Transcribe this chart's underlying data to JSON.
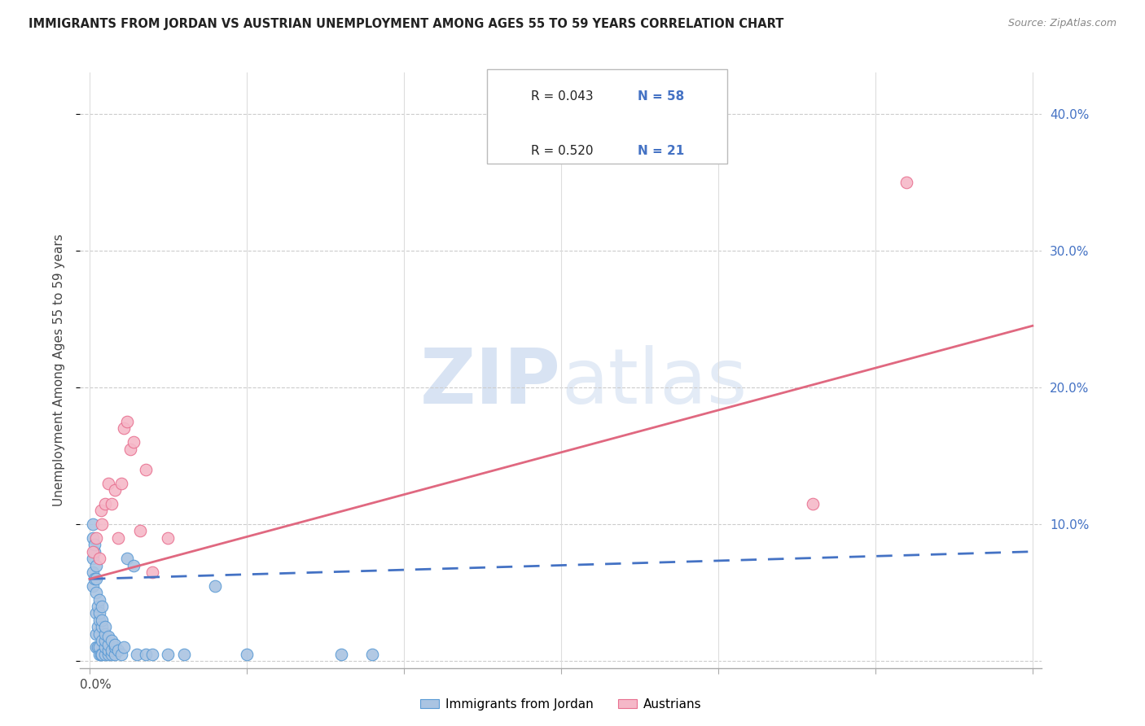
{
  "title": "IMMIGRANTS FROM JORDAN VS AUSTRIAN UNEMPLOYMENT AMONG AGES 55 TO 59 YEARS CORRELATION CHART",
  "source": "Source: ZipAtlas.com",
  "ylabel": "Unemployment Among Ages 55 to 59 years",
  "xlim": [
    0.0,
    0.3
  ],
  "ylim": [
    0.0,
    0.42
  ],
  "yticks": [
    0.0,
    0.1,
    0.2,
    0.3,
    0.4
  ],
  "right_ytick_labels": [
    "",
    "10.0%",
    "20.0%",
    "30.0%",
    "40.0%"
  ],
  "legend_r1": "R = 0.043",
  "legend_n1": "N = 58",
  "legend_r2": "R = 0.520",
  "legend_n2": "N = 21",
  "color_jordan_fill": "#aac4e2",
  "color_jordan_edge": "#5b9bd5",
  "color_austria_fill": "#f5b8c8",
  "color_austria_edge": "#e87090",
  "color_jordan_trend": "#4472c4",
  "color_austria_trend": "#e06880",
  "watermark_color": "#dce8f5",
  "jordan_x": [
    0.001,
    0.001,
    0.001,
    0.0015,
    0.0015,
    0.002,
    0.002,
    0.002,
    0.002,
    0.0025,
    0.0025,
    0.003,
    0.003,
    0.003,
    0.003,
    0.0035,
    0.004,
    0.004,
    0.004,
    0.005,
    0.005,
    0.005,
    0.005,
    0.006,
    0.006,
    0.006,
    0.007,
    0.007,
    0.008,
    0.008,
    0.001,
    0.001,
    0.0015,
    0.002,
    0.002,
    0.0025,
    0.003,
    0.003,
    0.004,
    0.004,
    0.005,
    0.006,
    0.007,
    0.008,
    0.009,
    0.01,
    0.011,
    0.012,
    0.014,
    0.015,
    0.018,
    0.02,
    0.025,
    0.03,
    0.04,
    0.05,
    0.08,
    0.09
  ],
  "jordan_y": [
    0.055,
    0.065,
    0.075,
    0.06,
    0.08,
    0.01,
    0.02,
    0.035,
    0.05,
    0.01,
    0.025,
    0.005,
    0.01,
    0.02,
    0.03,
    0.005,
    0.005,
    0.015,
    0.025,
    0.005,
    0.01,
    0.015,
    0.02,
    0.005,
    0.008,
    0.012,
    0.005,
    0.008,
    0.005,
    0.01,
    0.09,
    0.1,
    0.085,
    0.06,
    0.07,
    0.04,
    0.035,
    0.045,
    0.03,
    0.04,
    0.025,
    0.018,
    0.015,
    0.012,
    0.008,
    0.005,
    0.01,
    0.075,
    0.07,
    0.005,
    0.005,
    0.005,
    0.005,
    0.005,
    0.055,
    0.005,
    0.005,
    0.005
  ],
  "austria_x": [
    0.001,
    0.002,
    0.003,
    0.0035,
    0.004,
    0.005,
    0.006,
    0.007,
    0.008,
    0.009,
    0.01,
    0.011,
    0.012,
    0.013,
    0.014,
    0.016,
    0.018,
    0.02,
    0.025,
    0.23,
    0.26
  ],
  "austria_y": [
    0.08,
    0.09,
    0.075,
    0.11,
    0.1,
    0.115,
    0.13,
    0.115,
    0.125,
    0.09,
    0.13,
    0.17,
    0.175,
    0.155,
    0.16,
    0.095,
    0.14,
    0.065,
    0.09,
    0.115,
    0.35
  ],
  "jordan_trend_x": [
    0.0,
    0.3
  ],
  "jordan_trend_y": [
    0.06,
    0.08
  ],
  "austria_trend_x": [
    0.0,
    0.3
  ],
  "austria_trend_y": [
    0.06,
    0.245
  ]
}
